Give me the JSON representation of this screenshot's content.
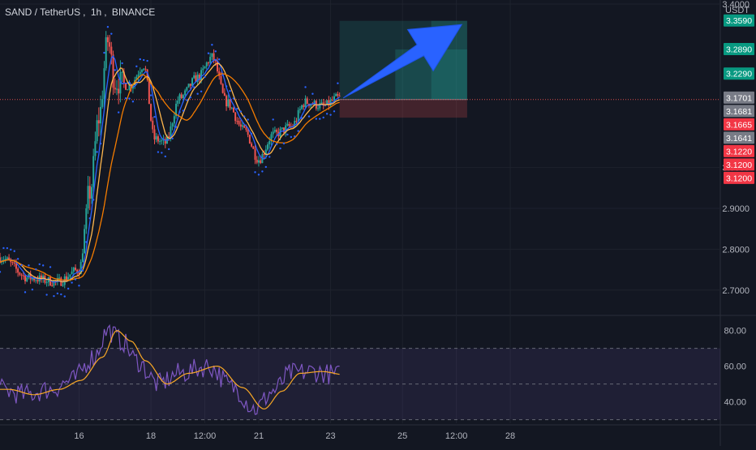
{
  "colors": {
    "background": "#131722",
    "grid": "#1e222d",
    "text": "#b2b5be",
    "candle_up": "#26a69a",
    "candle_down": "#ef5350",
    "ma_fast": "#2962ff",
    "ma_slow": "#f57c00",
    "ma_mid": "#ffb74d",
    "psar": "#2962ff",
    "rsi_line": "#7e57c2",
    "rsi_ma": "#f9a825",
    "rsi_band": "#7e57c2",
    "arrow": "#2962ff",
    "target_zone": "#26a69a",
    "stop_zone": "#ef5350"
  },
  "header": {
    "symbol": "SAND / TetherUS",
    "interval": "1h",
    "exchange": "BINANCE"
  },
  "chart_data": [
    {
      "type": "candlestick",
      "title": "SAND / TetherUS, 1h, BINANCE",
      "currency": "USDT",
      "ylim": [
        2.64,
        3.41
      ],
      "x_range": [
        0,
        20
      ],
      "x_ticks": [
        {
          "label": "16",
          "x": 2.2
        },
        {
          "label": "18",
          "x": 4.2
        },
        {
          "label": "12:00",
          "x": 5.7
        },
        {
          "label": "21",
          "x": 7.2
        },
        {
          "label": "23",
          "x": 9.2
        },
        {
          "label": "25",
          "x": 11.2
        },
        {
          "label": "12:00",
          "x": 12.7
        },
        {
          "label": "28",
          "x": 14.2
        }
      ],
      "y_ticks": [
        2.7,
        2.8,
        2.9,
        3.0,
        3.4
      ],
      "y_tick_labels": [
        "2.7000",
        "2.8000",
        "2.9000",
        "3.0000",
        "3.4000"
      ],
      "price_labels": [
        {
          "value": 3.359,
          "text": "3.3590",
          "color": "#089981"
        },
        {
          "value": 3.289,
          "text": "3.2890",
          "color": "#089981"
        },
        {
          "value": 3.229,
          "text": "3.2290",
          "color": "#089981"
        },
        {
          "value": 3.1701,
          "text": "3.1701",
          "color": "#787b86"
        },
        {
          "value": 3.1681,
          "text": "3.1681",
          "color": "#787b86"
        },
        {
          "value": 3.1665,
          "text": "3.1665",
          "color": "#f23645"
        },
        {
          "value": 3.1641,
          "text": "3.1641",
          "color": "#787b86"
        },
        {
          "value": 3.122,
          "text": "3.1220",
          "color": "#f23645"
        },
        {
          "value": 3.12,
          "text": "3.1200",
          "color": "#f23645"
        },
        {
          "value": 3.12,
          "text": "3.1200",
          "color": "#f23645"
        }
      ],
      "current_price": 3.1665,
      "anchors": [
        {
          "x": 0.0,
          "y": 2.78
        },
        {
          "x": 0.8,
          "y": 2.73
        },
        {
          "x": 1.6,
          "y": 2.72
        },
        {
          "x": 2.2,
          "y": 2.75
        },
        {
          "x": 2.5,
          "y": 2.94
        },
        {
          "x": 2.75,
          "y": 3.12
        },
        {
          "x": 3.0,
          "y": 3.31
        },
        {
          "x": 3.2,
          "y": 3.21
        },
        {
          "x": 3.6,
          "y": 3.2
        },
        {
          "x": 4.0,
          "y": 3.25
        },
        {
          "x": 4.3,
          "y": 3.07
        },
        {
          "x": 4.6,
          "y": 3.06
        },
        {
          "x": 5.0,
          "y": 3.17
        },
        {
          "x": 5.5,
          "y": 3.22
        },
        {
          "x": 5.9,
          "y": 3.27
        },
        {
          "x": 6.3,
          "y": 3.16
        },
        {
          "x": 6.8,
          "y": 3.09
        },
        {
          "x": 7.2,
          "y": 3.02
        },
        {
          "x": 7.6,
          "y": 3.08
        },
        {
          "x": 8.1,
          "y": 3.1
        },
        {
          "x": 8.5,
          "y": 3.16
        },
        {
          "x": 9.0,
          "y": 3.15
        },
        {
          "x": 9.4,
          "y": 3.17
        }
      ],
      "position": {
        "x_start": 9.45,
        "x_end": 13.0,
        "entry": 3.1665,
        "target": 3.359,
        "stop": 3.122,
        "fills": [
          {
            "x_start": 11.0,
            "x_end": 13.0,
            "value": 3.289
          },
          {
            "x_start": 12.0,
            "x_end": 13.0,
            "value": 3.359
          }
        ]
      },
      "arrow": {
        "x_from": 9.55,
        "y_from": 3.17,
        "x_to": 12.85,
        "y_to": 3.35
      }
    },
    {
      "type": "line",
      "title": "RSI",
      "ylim": [
        28,
        88
      ],
      "y_ticks": [
        40,
        60,
        80
      ],
      "y_tick_labels": [
        "40.00",
        "60.00",
        "80.00"
      ],
      "bands": [
        30,
        50,
        70
      ],
      "anchors": [
        {
          "x": 0.0,
          "y": 47
        },
        {
          "x": 0.7,
          "y": 44
        },
        {
          "x": 1.4,
          "y": 47
        },
        {
          "x": 2.0,
          "y": 52
        },
        {
          "x": 2.6,
          "y": 65
        },
        {
          "x": 3.0,
          "y": 80
        },
        {
          "x": 3.4,
          "y": 74
        },
        {
          "x": 3.8,
          "y": 63
        },
        {
          "x": 4.4,
          "y": 50
        },
        {
          "x": 5.0,
          "y": 56
        },
        {
          "x": 5.8,
          "y": 60
        },
        {
          "x": 6.5,
          "y": 48
        },
        {
          "x": 7.1,
          "y": 36
        },
        {
          "x": 7.6,
          "y": 46
        },
        {
          "x": 8.1,
          "y": 56
        },
        {
          "x": 8.7,
          "y": 57
        },
        {
          "x": 9.4,
          "y": 55
        }
      ]
    }
  ]
}
